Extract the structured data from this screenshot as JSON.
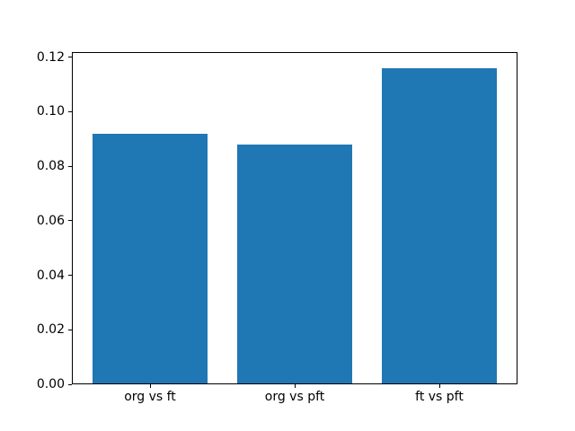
{
  "chart_data": {
    "type": "bar",
    "title": "",
    "xlabel": "",
    "ylabel": "",
    "categories": [
      "org vs ft",
      "org vs pft",
      "ft vs pft"
    ],
    "values": [
      0.092,
      0.088,
      0.116
    ],
    "bar_color": "#1f77b4",
    "axis_color": "#000000",
    "background_color": "#ffffff",
    "ylim": [
      0,
      0.1218
    ],
    "xlim": [
      -0.54,
      2.54
    ],
    "bar_width_fraction": 0.8,
    "yticks": {
      "values": [
        0,
        0.02,
        0.04,
        0.06,
        0.08,
        0.1,
        0.12
      ],
      "labels": [
        "0.00",
        "0.02",
        "0.04",
        "0.06",
        "0.08",
        "0.10",
        "0.12"
      ]
    },
    "grid": false,
    "legend": null
  }
}
